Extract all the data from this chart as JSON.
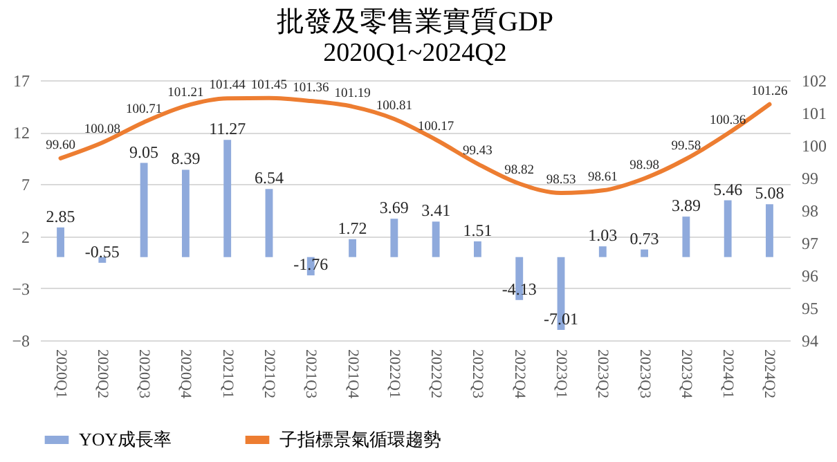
{
  "chart_data": {
    "type": "bar",
    "title": "批發及零售業實質GDP",
    "subtitle": "2020Q1~2024Q2",
    "categories": [
      "2020Q1",
      "2020Q2",
      "2020Q3",
      "2020Q4",
      "2021Q1",
      "2021Q2",
      "2021Q3",
      "2021Q4",
      "2022Q1",
      "2022Q2",
      "2022Q3",
      "2022Q4",
      "2023Q1",
      "2023Q2",
      "2023Q3",
      "2023Q4",
      "2024Q1",
      "2024Q2"
    ],
    "series": [
      {
        "name": "YOY成長率",
        "color": "#8faadc",
        "values": [
          2.85,
          -0.55,
          9.05,
          8.39,
          11.27,
          6.54,
          -1.76,
          1.72,
          3.69,
          3.41,
          1.51,
          -4.13,
          -7.01,
          1.03,
          0.73,
          3.89,
          5.46,
          5.08
        ],
        "value_labels": [
          "2.85",
          "-0.55",
          "9.05",
          "8.39",
          "11.27",
          "6.54",
          "-1.76",
          "1.72",
          "3.69",
          "3.41",
          "1.51",
          "-4.13",
          "-7.01",
          "1.03",
          "0.73",
          "3.89",
          "5.46",
          "5.08"
        ]
      },
      {
        "name": "子指標景氣循環趨勢",
        "type": "line",
        "axis": "y2",
        "color": "#ed7d31",
        "values": [
          99.6,
          100.08,
          100.71,
          101.21,
          101.44,
          101.45,
          101.36,
          101.19,
          100.81,
          100.17,
          99.43,
          98.82,
          98.53,
          98.61,
          98.98,
          99.58,
          100.36,
          101.26
        ],
        "value_labels": [
          "99.60",
          "100.08",
          "100.71",
          "101.21",
          "101.44",
          "101.45",
          "101.36",
          "101.19",
          "100.81",
          "100.17",
          "99.43",
          "98.82",
          "98.53",
          "98.61",
          "98.98",
          "99.58",
          "100.36",
          "101.26"
        ]
      }
    ],
    "ylim": [
      -8,
      17
    ],
    "yticks": [
      -8,
      -3,
      2,
      7,
      12,
      17
    ],
    "y2lim": [
      94,
      102
    ],
    "y2ticks": [
      94,
      95,
      96,
      97,
      98,
      99,
      100,
      101,
      102
    ],
    "grid": "y",
    "legend": "bottom"
  }
}
